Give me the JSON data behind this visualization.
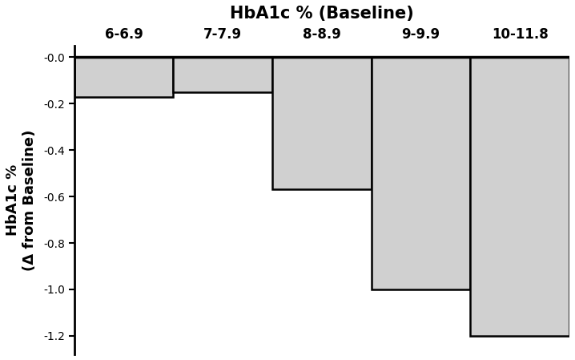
{
  "categories": [
    "6-6.9",
    "7-7.9",
    "8-8.9",
    "9-9.9",
    "10-11.8"
  ],
  "values": [
    -0.17,
    -0.15,
    -0.57,
    -1.0,
    -1.2
  ],
  "bar_color": "#d0d0d0",
  "bar_edgecolor": "#000000",
  "title": "HbA1c % (Baseline)",
  "ylabel_line1": "HbA1c %",
  "ylabel_line2": "(Δ from Baseline)",
  "ylim": [
    -1.28,
    0.05
  ],
  "yticks": [
    0.0,
    -0.2,
    -0.4,
    -0.6,
    -0.8,
    -1.0,
    -1.2
  ],
  "ytick_labels": [
    "-0.0",
    "-0.2",
    "-0.4",
    "-0.6",
    "-0.8",
    "-1.0",
    "-1.2"
  ],
  "title_fontsize": 15,
  "label_fontsize": 13,
  "tick_fontsize": 12,
  "bar_linewidth": 1.8,
  "background_color": "#ffffff",
  "bar_left_edges": [
    1,
    2,
    3,
    4,
    5
  ],
  "bar_widths": [
    1,
    1,
    1,
    1,
    1
  ]
}
